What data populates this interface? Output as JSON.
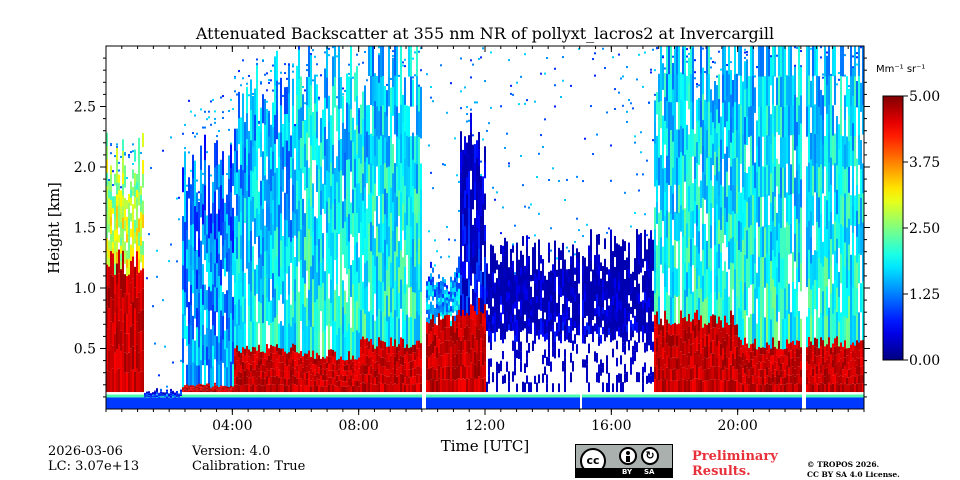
{
  "chart_data": {
    "type": "heatmap",
    "title": "Attenuated Backscatter at 355 nm NR of pollyxt_lacros2 at Invercargill",
    "xlabel": "Time [UTC]",
    "ylabel": "Height [km]",
    "x_range_hours": [
      0,
      24
    ],
    "y_range_km": [
      0,
      3.0
    ],
    "x_ticks": [
      {
        "value": 4,
        "label": "04:00"
      },
      {
        "value": 8,
        "label": "08:00"
      },
      {
        "value": 12,
        "label": "12:00"
      },
      {
        "value": 16,
        "label": "16:00"
      },
      {
        "value": 20,
        "label": "20:00"
      }
    ],
    "y_ticks": [
      {
        "value": 0.5,
        "label": "0.5"
      },
      {
        "value": 1.0,
        "label": "1.0"
      },
      {
        "value": 1.5,
        "label": "1.5"
      },
      {
        "value": 2.0,
        "label": "2.0"
      },
      {
        "value": 2.5,
        "label": "2.5"
      }
    ],
    "colorbar": {
      "unit": "Mm⁻¹ sr⁻¹",
      "range": [
        0,
        5
      ],
      "colormap": "jet",
      "ticks": [
        {
          "value": 0,
          "label": "0.00"
        },
        {
          "value": 1.25,
          "label": "1.25"
        },
        {
          "value": 2.5,
          "label": "2.50"
        },
        {
          "value": 3.75,
          "label": "3.75"
        },
        {
          "value": 5.0,
          "label": "5.00"
        }
      ]
    },
    "segments": [
      {
        "t0": 0.0,
        "t1": 1.2,
        "top": 2.05,
        "low_top": 1.2,
        "base": 3.0,
        "sparse_top": 2.2
      },
      {
        "t0": 1.2,
        "t1": 2.4,
        "top": 0.15,
        "low_top": 0.1,
        "base": 1.0,
        "sparse_top": 2.4
      },
      {
        "t0": 2.4,
        "t1": 4.0,
        "top": 2.0,
        "low_top": 0.2,
        "base": 1.5,
        "sparse_top": 2.6
      },
      {
        "t0": 4.0,
        "t1": 6.0,
        "top": 2.6,
        "low_top": 0.5,
        "base": 1.8,
        "sparse_top": 2.9
      },
      {
        "t0": 6.0,
        "t1": 8.0,
        "top": 2.7,
        "low_top": 0.45,
        "base": 2.0,
        "sparse_top": 3.0
      },
      {
        "t0": 8.0,
        "t1": 10.0,
        "top": 3.0,
        "low_top": 0.55,
        "base": 2.0,
        "sparse_top": 3.0
      },
      {
        "t0": 10.0,
        "t1": 11.2,
        "top": 1.1,
        "low_top": 0.75,
        "base": 1.6,
        "sparse_top": 3.0
      },
      {
        "t0": 11.2,
        "t1": 12.0,
        "top": 2.2,
        "low_top": 0.85,
        "base": 0.6,
        "sparse_top": 3.0
      },
      {
        "t0": 12.0,
        "t1": 17.3,
        "top": 1.3,
        "low_top": 0.6,
        "base": 0.3,
        "sparse_top": 3.0
      },
      {
        "t0": 17.3,
        "t1": 20.0,
        "top": 3.0,
        "low_top": 0.75,
        "base": 2.0,
        "sparse_top": 3.0
      },
      {
        "t0": 20.0,
        "t1": 24.0,
        "top": 3.0,
        "low_top": 0.55,
        "base": 2.0,
        "sparse_top": 3.0
      }
    ],
    "gaps_hours": [
      [
        9.95,
        10.1
      ],
      [
        15.0,
        15.05
      ],
      [
        22.0,
        22.15
      ]
    ]
  },
  "meta": {
    "date": "2026-03-06",
    "lc": "LC: 3.07e+13",
    "version": "Version: 4.0",
    "calibration": "Calibration: True"
  },
  "license": {
    "preliminary_line1": "Preliminary",
    "preliminary_line2": "Results.",
    "copyright_line1": "© TROPOS 2026.",
    "copyright_line2": "CC BY SA 4.0 License.",
    "cc_badge_by": "BY",
    "cc_badge_sa": "SA"
  }
}
